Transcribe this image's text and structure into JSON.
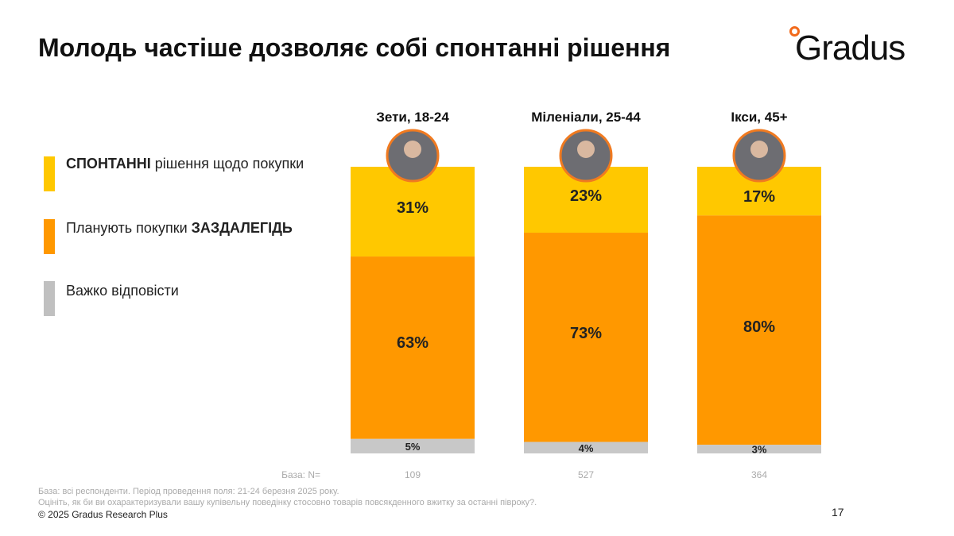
{
  "title": "Молодь частіше дозволяє собі спонтанні рішення",
  "logo": "Gradus",
  "legend": [
    {
      "bold": "СПОНТАННІ",
      "text": " рішення щодо покупки",
      "color": "#ffc800"
    },
    {
      "pre": "Планують покупки ",
      "bold": "ЗАЗДАЛЕГІДЬ",
      "color": "#ff9800"
    },
    {
      "text": "Важко відповісти",
      "color": "#c0c0c0"
    }
  ],
  "chart_data": {
    "type": "bar",
    "stacked": true,
    "categories": [
      "Зети, 18-24",
      "Міленіали, 25-44",
      "Ікси, 45+"
    ],
    "series": [
      {
        "name": "СПОНТАННІ рішення щодо покупки",
        "color": "#ffc800",
        "values": [
          31,
          23,
          17
        ]
      },
      {
        "name": "Планують покупки ЗАЗДАЛЕГІДЬ",
        "color": "#ff9800",
        "values": [
          63,
          73,
          80
        ]
      },
      {
        "name": "Важко відповісти",
        "color": "#c8c8c8",
        "values": [
          5,
          4,
          3
        ]
      }
    ],
    "base_label": "База: N=",
    "base_values": [
      "109",
      "527",
      "364"
    ]
  },
  "footnote1": "База: всі респонденти. Період проведення поля: 21-24 березня 2025 року.",
  "footnote2": "Оцініть, як би ви охарактеризували вашу купівельну поведінку стосовно товарів повсякденного вжитку за останні півроку?.",
  "copyright": "© 2025 Gradus Research Plus",
  "page_number": "17"
}
